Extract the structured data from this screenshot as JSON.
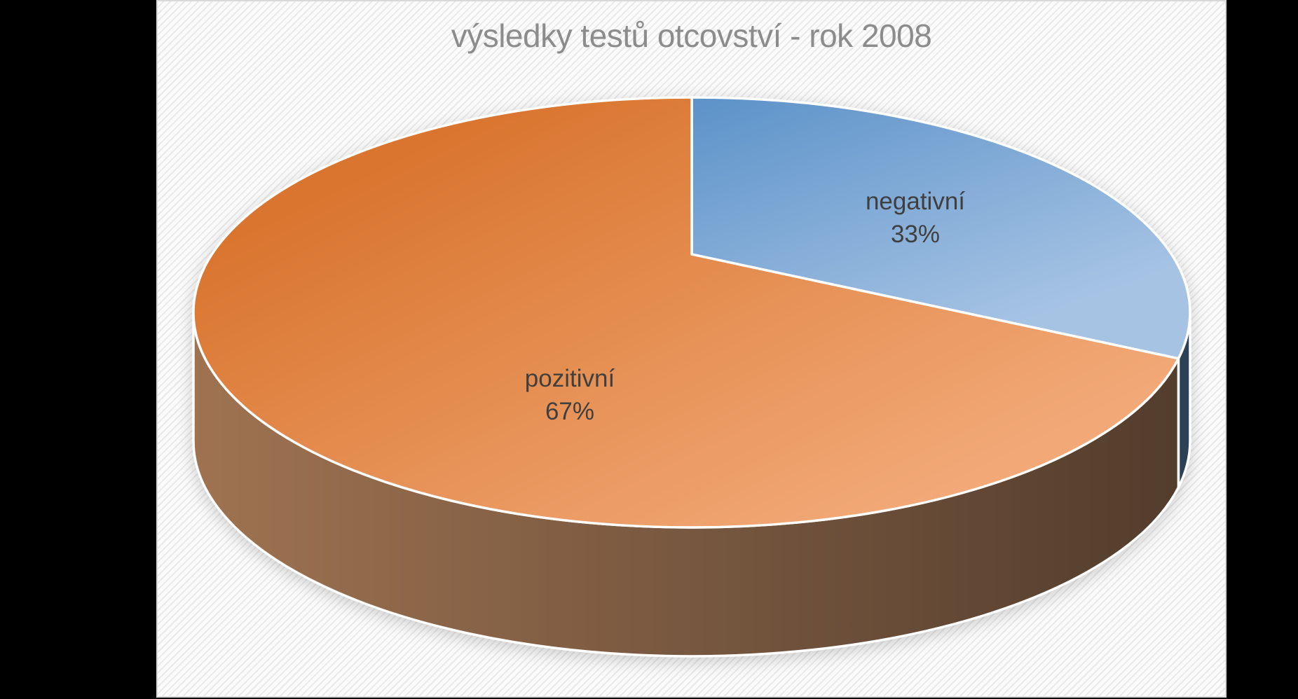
{
  "chart_data": {
    "type": "pie",
    "style": "3d-perspective",
    "title": "výsledky testů otcovství - rok 2008",
    "direction": "clockwise",
    "start_angle_deg": 0,
    "legend": "none",
    "unit": "%",
    "slices": [
      {
        "label": "negativní",
        "value": 33,
        "value_text": "33%",
        "color": "#5A91C8",
        "side_color": "#2C4156"
      },
      {
        "label": "pozitivní",
        "value": 67,
        "value_text": "67%",
        "color": "#E0823C",
        "side_color": "#7B5A41"
      }
    ],
    "style_colors": {
      "blue_top": "#5A91C8",
      "blue_bottom": "#A6C3E4",
      "orange_top": "#D9752F",
      "orange_bottom": "#F2A977",
      "wall_left": "#9F7351",
      "wall_mid": "#7B5A41",
      "wall_right": "#523C2C",
      "blue_wall": "#2C4156",
      "stripe": "#E9E9E9",
      "slide_border": "#D9D9D9",
      "title_color": "#8C8C8C",
      "label_color": "#3F3F3F",
      "slice_outline": "#FFFFFF",
      "letterbox": "#000000"
    }
  }
}
